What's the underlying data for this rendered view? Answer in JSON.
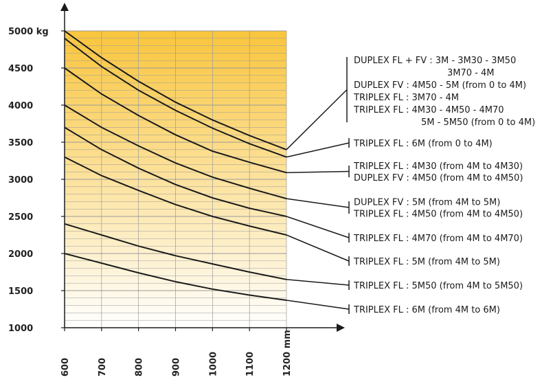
{
  "chart_data": {
    "type": "line",
    "title": "",
    "xlabel": "",
    "ylabel": "",
    "xlim": [
      600,
      1200
    ],
    "ylim": [
      1000,
      5000
    ],
    "x_ticks": [
      600,
      700,
      800,
      900,
      1000,
      1100,
      1200
    ],
    "x_tick_labels": [
      "600",
      "700",
      "800",
      "900",
      "1000",
      "1100",
      "1200 mm"
    ],
    "y_ticks": [
      1000,
      1500,
      2000,
      2500,
      3000,
      3500,
      4000,
      4500,
      5000
    ],
    "y_tick_labels": [
      "1000",
      "1500",
      "2000",
      "2500",
      "3000",
      "3500",
      "4000",
      "4500",
      "5000 kg"
    ],
    "grid": true,
    "x": [
      600,
      700,
      800,
      900,
      1000,
      1100,
      1200
    ],
    "series": [
      {
        "values": [
          5000,
          4640,
          4320,
          4040,
          3800,
          3590,
          3400
        ]
      },
      {
        "values": [
          4900,
          4520,
          4200,
          3930,
          3690,
          3480,
          3300
        ]
      },
      {
        "values": [
          4500,
          4150,
          3860,
          3600,
          3380,
          3230,
          3090
        ]
      },
      {
        "values": [
          4000,
          3700,
          3450,
          3220,
          3030,
          2880,
          2740
        ]
      },
      {
        "values": [
          3700,
          3400,
          3150,
          2930,
          2750,
          2610,
          2500
        ]
      },
      {
        "values": [
          3300,
          3050,
          2850,
          2660,
          2500,
          2370,
          2250
        ]
      },
      {
        "values": [
          2400,
          2250,
          2100,
          1970,
          1860,
          1750,
          1650
        ]
      },
      {
        "values": [
          2000,
          1870,
          1740,
          1620,
          1520,
          1440,
          1370
        ]
      }
    ],
    "legend": [
      {
        "lines": [
          "DUPLEX FL + FV : 3M - 3M30 - 3M50",
          "3M70 - 4M",
          "DUPLEX FV : 4M50 - 5M (from 0 to 4M)",
          "TRIPLEX FL : 3M70 - 4M",
          "TRIPLEX FL : 4M30 - 4M50 - 4M70",
          "5M - 5M50 (from 0 to 4M)"
        ]
      },
      {
        "lines": [
          "TRIPLEX FL : 6M (from 0 to 4M)"
        ]
      },
      {
        "lines": [
          "TRIPLEX FL : 4M30 (from 4M to 4M30)",
          "DUPLEX FV : 4M50 (from 4M to 4M50)"
        ]
      },
      {
        "lines": [
          "DUPLEX FV : 5M (from 4M to 5M)",
          "TRIPLEX FL : 4M50 (from 4M to 4M50)"
        ]
      },
      {
        "lines": [
          "TRIPLEX FL : 4M70 (from 4M to 4M70)"
        ]
      },
      {
        "lines": [
          "TRIPLEX FL : 5M (from 4M to 5M)"
        ]
      },
      {
        "lines": [
          "TRIPLEX FL : 5M50 (from 4M to 5M50)"
        ]
      },
      {
        "lines": [
          "TRIPLEX FL : 6M (from 4M to 6M)"
        ]
      }
    ],
    "colors": {
      "gradient_top": "#f9c53c",
      "gradient_bottom": "#ffffff",
      "grid": "#9a9a9a",
      "lines": "#1a1a1a"
    }
  }
}
